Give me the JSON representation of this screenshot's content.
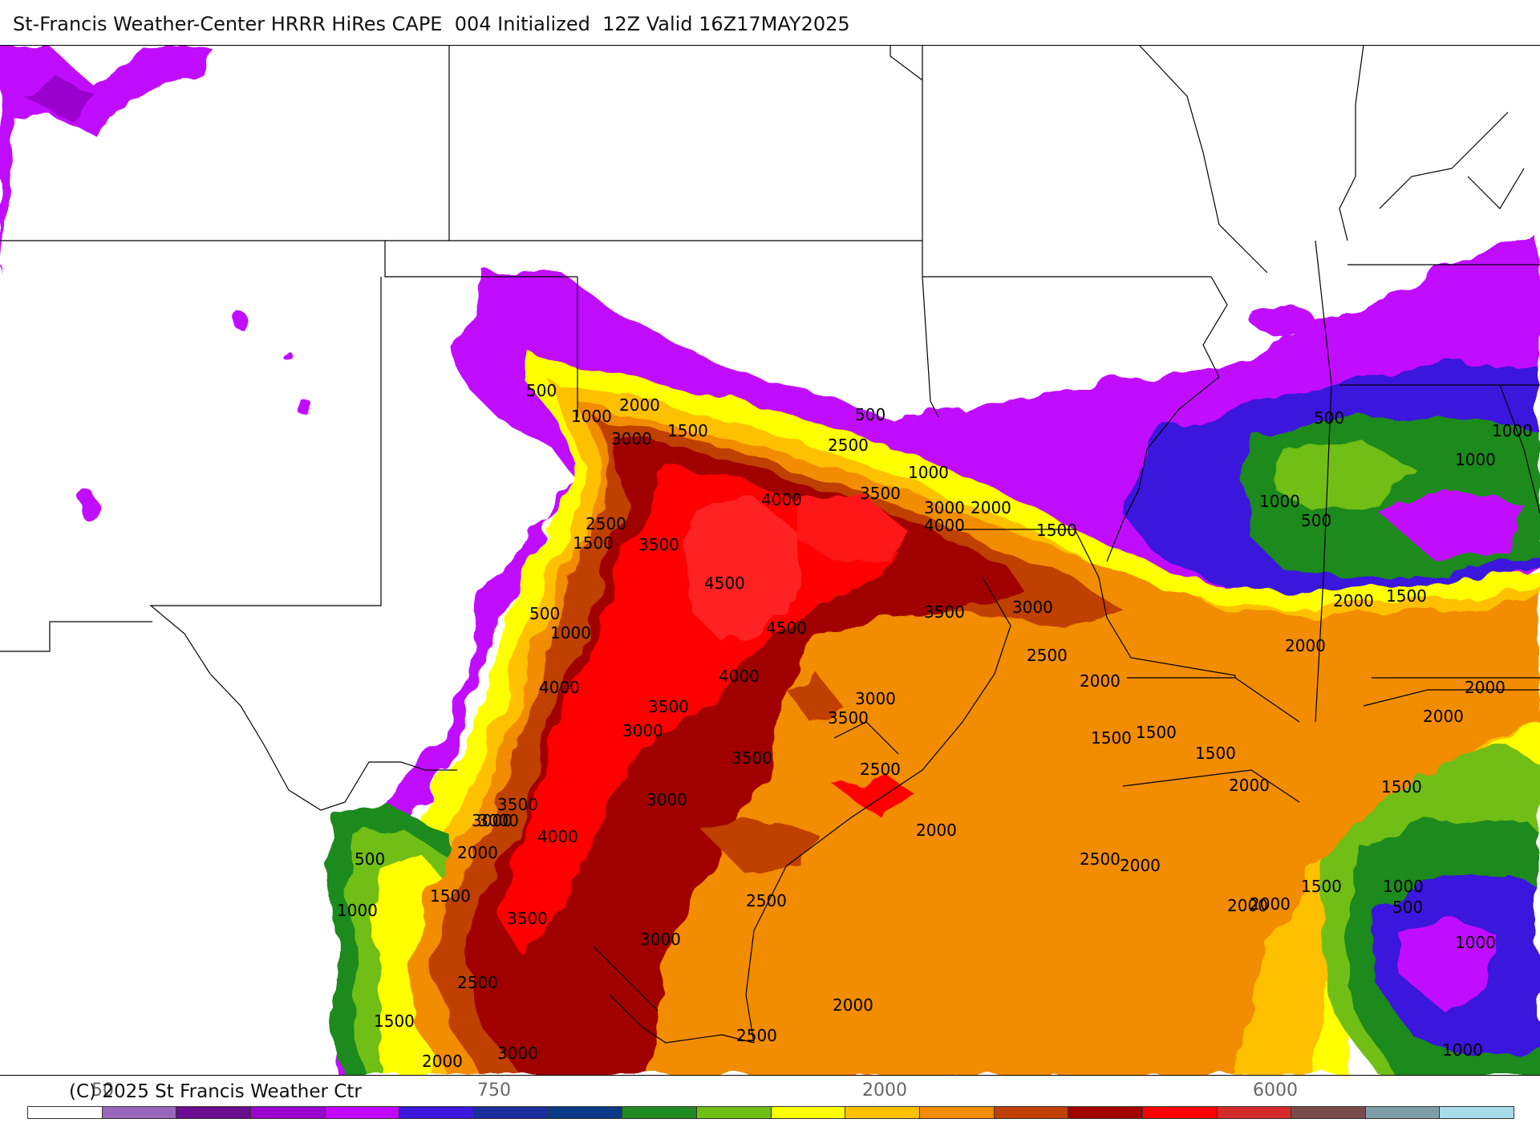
{
  "header": {
    "title": "St-Francis Weather-Center HRRR HiRes CAPE  004 Initialized  12Z Valid 16Z17MAY2025"
  },
  "footer": {
    "copyright": "(C) 2025 St Francis Weather Ctr",
    "colorbar_tick_labels": [
      "50",
      "750",
      "2000",
      "6000"
    ]
  },
  "legend": {
    "colors": [
      "#ffffff",
      "#9966bb",
      "#6a0e8f",
      "#9a04ce",
      "#c107ff",
      "#3b18dc",
      "#1a2d9c",
      "#0a3a86",
      "#1f8a1f",
      "#6fbe16",
      "#ffff00",
      "#ffc000",
      "#f28c00",
      "#c04000",
      "#a00000",
      "#ff0000",
      "#d42a2a",
      "#7a4a4a",
      "#7d9ea8",
      "#a8dce8"
    ]
  },
  "map": {
    "field": "CAPE",
    "contour_labels": [
      "500",
      "1000",
      "2000",
      "1500",
      "3000",
      "2500",
      "1000",
      "500",
      "4000",
      "3500",
      "3000",
      "2000",
      "4000",
      "1500",
      "2500",
      "1500",
      "3500",
      "4500",
      "3500",
      "3000",
      "4500",
      "500",
      "1000",
      "4000",
      "2500",
      "2000",
      "4000",
      "3500",
      "3000",
      "3000",
      "3500",
      "3000",
      "3500",
      "3000",
      "2500",
      "2000",
      "1500",
      "1500",
      "1500",
      "2000",
      "2000",
      "2000",
      "2500",
      "2000",
      "1500",
      "3500",
      "3000",
      "4000",
      "2000",
      "500",
      "1500",
      "1000",
      "3500",
      "3000",
      "2500",
      "2500",
      "2000",
      "2000",
      "2500",
      "1500",
      "2000",
      "3000",
      "500",
      "1000",
      "1000",
      "500",
      "1000",
      "1500",
      "2000",
      "2000",
      "2000",
      "1500",
      "1000",
      "500",
      "1000",
      "1000"
    ]
  }
}
